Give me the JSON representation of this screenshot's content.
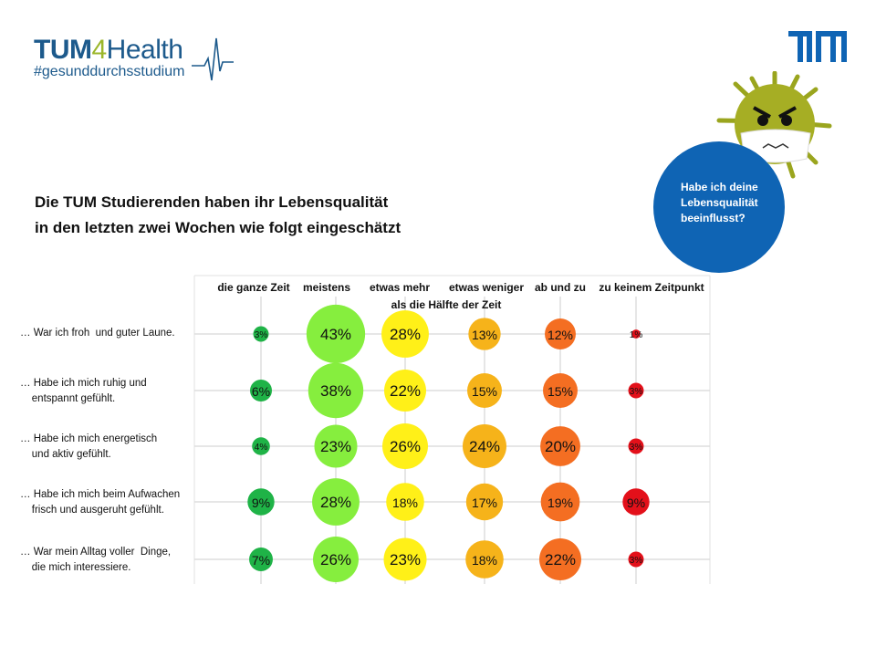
{
  "logo": {
    "part1": "TUM",
    "part2": "4",
    "part3": "Health",
    "tagline": "#gesunddurchsstudium"
  },
  "tum_logo_text": "TUM",
  "title": {
    "line1": "Die TUM Studierenden haben ihr Lebensqualität",
    "line2": "in den letzten zwei Wochen wie folgt eingeschätzt"
  },
  "callout": {
    "line1": "Habe ich deine",
    "line2": "Lebensqualität",
    "line3": "beeinflusst?"
  },
  "colors": [
    "#1fb347",
    "#86ee3e",
    "#fff018",
    "#f6b31a",
    "#f46e22",
    "#e3101a"
  ],
  "chart_data": {
    "type": "bubble",
    "title": "Die TUM Studierenden haben ihr Lebensqualität in den letzten zwei Wochen wie folgt eingeschätzt",
    "categories": [
      "die ganze Zeit",
      "meistens",
      "etwas mehr\nals die Hälfte der Zeit",
      "etwas weniger",
      "ab und zu",
      "zu keinem Zeitpunkt"
    ],
    "header_line2": "als die Hälfte der Zeit",
    "rows": [
      {
        "label": "… War ich froh  und guter Laune.",
        "values": [
          3,
          43,
          28,
          13,
          12,
          1
        ]
      },
      {
        "label": "… Habe ich mich ruhig und\n    entspannt gefühlt.",
        "values": [
          6,
          38,
          22,
          15,
          15,
          3
        ]
      },
      {
        "label": "… Habe ich mich energetisch\n    und aktiv gefühlt.",
        "values": [
          4,
          23,
          26,
          24,
          20,
          3
        ]
      },
      {
        "label": "… Habe ich mich beim Aufwachen\n    frisch und ausgeruht gefühlt.",
        "values": [
          9,
          28,
          18,
          17,
          19,
          9
        ]
      },
      {
        "label": "… War mein Alltag voller  Dinge,\n    die mich interessiere.",
        "values": [
          7,
          26,
          23,
          18,
          22,
          3
        ]
      }
    ],
    "unit": "%"
  }
}
